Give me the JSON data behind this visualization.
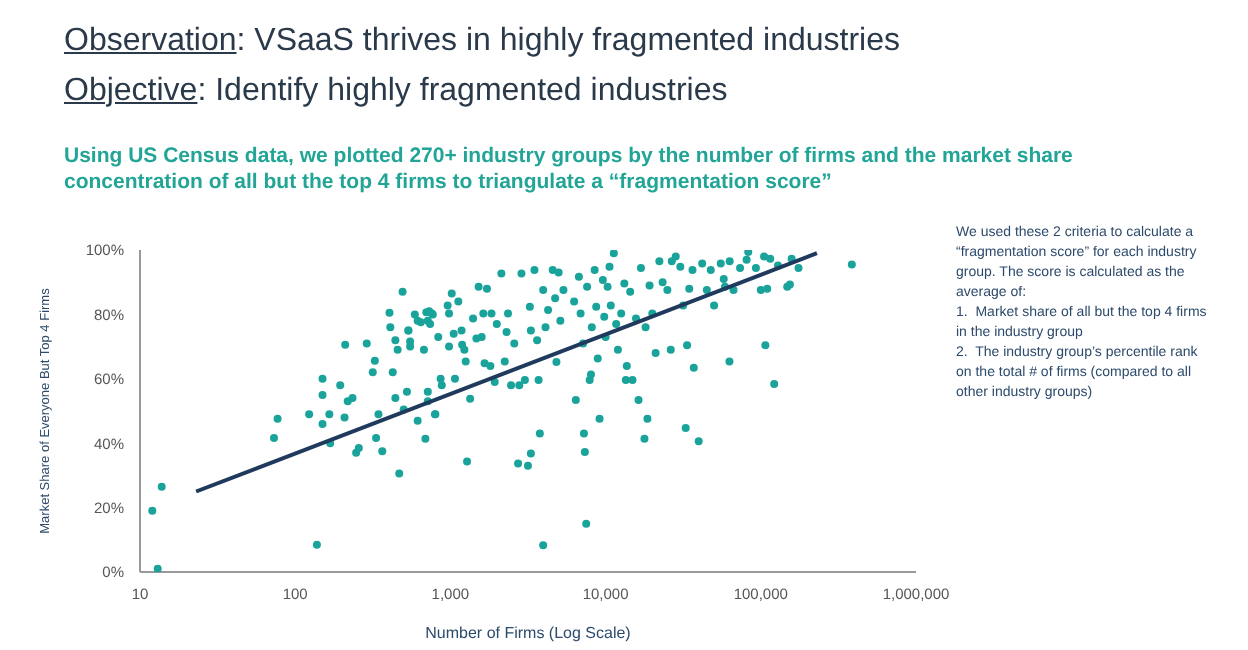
{
  "chart_data": {
    "type": "scatter",
    "title": "Observation: VSaaS thrives in highly fragmented industries",
    "subtitle": "Objective: Identify highly fragmented industries",
    "annotations": [
      "Using US Census data, we plotted 270+ industry groups by the number of firms and the market share concentration of all but the top 4 firms to triangulate a “fragmentation score”",
      "We used these 2 criteria to calculate a “fragmentation score” for each industry group. The score is calculated as the average of:\n1.  Market share of all but the top 4 firms in the industry group\n2.  The industry group’s percentile rank on the total # of firms (compared to all other industry groups)"
    ],
    "xlabel": "Number of Firms (Log Scale)",
    "ylabel": "Market Share of Everyone But Top 4 Firms",
    "log": "x",
    "grid": false,
    "legend": false,
    "marker": "circle",
    "xlim": [
      10,
      1000000
    ],
    "xticks": [
      10,
      100,
      {
        "value": 1000,
        "label": "1,000"
      },
      {
        "value": 10000,
        "label": "10,000"
      },
      {
        "value": 100000,
        "label": "100,000"
      },
      {
        "value": 1000000,
        "label": "1,000,000"
      }
    ],
    "ylim": [
      0,
      100
    ],
    "yticks": [
      {
        "value": 0,
        "label": "0%"
      },
      {
        "value": 20,
        "label": "20%"
      },
      {
        "value": 40,
        "label": "40%"
      },
      {
        "value": 60,
        "label": "60%"
      },
      {
        "value": 80,
        "label": "80%"
      },
      {
        "value": 100,
        "label": "100%"
      }
    ],
    "series": [
      {
        "type": "scatter",
        "color": "#1aa39a",
        "x": [
          12,
          13.8,
          13,
          73,
          77,
          123,
          138,
          150,
          150,
          150,
          166,
          168,
          195,
          208,
          210,
          218,
          234,
          247,
          257,
          289,
          316,
          326,
          344,
          332,
          364,
          405,
          410,
          425,
          442,
          442,
          457,
          468,
          492,
          500,
          525,
          535,
          550,
          550,
          590,
          615,
          645,
          675,
          690,
          715,
          715,
          730,
          770,
          800,
          537,
          615,
          700,
          715,
          740,
          760,
          795,
          835,
          865,
          880,
          960,
          980,
          980,
          1020,
          1050,
          1070,
          1125,
          1180,
          1190,
          1230,
          1255,
          1280,
          1340,
          1400,
          1470,
          1520,
          1590,
          1630,
          1660,
          1720,
          1810,
          1840,
          1930,
          1990,
          2130,
          2240,
          2300,
          2350,
          2460,
          2580,
          2730,
          2780,
          2870,
          3020,
          3160,
          3250,
          3300,
          3300,
          3480,
          3620,
          3700,
          3770,
          3960,
          3960,
          4100,
          4260,
          4560,
          4730,
          4820,
          4980,
          5110,
          5350,
          6270,
          6430,
          6730,
          6900,
          7160,
          7250,
          7350,
          7500,
          7600,
          7900,
          8050,
          8150,
          8500,
          8700,
          8900,
          9140,
          9600,
          9800,
          10000,
          10300,
          10600,
          10800,
          11300,
          11700,
          12000,
          12600,
          13200,
          13500,
          13700,
          14400,
          14900,
          15700,
          16300,
          16900,
          17800,
          18100,
          18600,
          19200,
          20000,
          21000,
          22200,
          23300,
          25000,
          26300,
          26700,
          28300,
          30300,
          31600,
          32800,
          33500,
          34600,
          36300,
          37000,
          39800,
          41900,
          44900,
          47600,
          50000,
          55200,
          57700,
          58800,
          62800,
          66700,
          73500,
          81000,
          63000,
          83000,
          93000,
          100000,
          105000,
          107000,
          110000,
          115000,
          122000,
          129000,
          148000,
          154000,
          158000,
          175000,
          386000
        ],
        "values": [
          19,
          26.5,
          1,
          41.6,
          47.6,
          49,
          8.5,
          60,
          55,
          46,
          49,
          40,
          58,
          48,
          70.6,
          53,
          54,
          37,
          38.5,
          71,
          62,
          65.6,
          49,
          41.6,
          37.5,
          80.5,
          76,
          62,
          72,
          54,
          69,
          30.6,
          87,
          50.5,
          56,
          75,
          71.6,
          70,
          80,
          47,
          77.6,
          69,
          41.4,
          56,
          78,
          81,
          80,
          49,
          75,
          78,
          80.7,
          53,
          77,
          80.3,
          49,
          73,
          60,
          58,
          82.8,
          80.3,
          70,
          86.5,
          74,
          60,
          84,
          75,
          70.6,
          69,
          65.4,
          34.3,
          53.8,
          78.7,
          72.5,
          88.6,
          73,
          80.3,
          64.8,
          88,
          64,
          80.3,
          59,
          77,
          92.7,
          65.4,
          74.5,
          80.3,
          58,
          71,
          33.7,
          58,
          92.7,
          59.6,
          33,
          82.4,
          36.8,
          75,
          93.8,
          72,
          59.6,
          43,
          8.3,
          87.6,
          76,
          81.4,
          93.8,
          85,
          65.2,
          93,
          78,
          87.6,
          84,
          53.4,
          91.7,
          80.3,
          71,
          43,
          37.3,
          15,
          88.6,
          59.6,
          61.3,
          76,
          93.8,
          82.4,
          66.3,
          47.6,
          90.7,
          79.3,
          73,
          88.6,
          94.8,
          82.8,
          99,
          77,
          69,
          80.3,
          89.6,
          59.6,
          64,
          87,
          59.6,
          78.7,
          53.4,
          94.4,
          41.4,
          76,
          47.6,
          89,
          80.3,
          68,
          96.5,
          90,
          87.6,
          69,
          96.5,
          98,
          94.8,
          82.8,
          44.7,
          70.4,
          88,
          93.8,
          63.4,
          40.6,
          95.8,
          87.6,
          93.8,
          82.8,
          95.8,
          91,
          88.6,
          65.4,
          87.6,
          94.4,
          97,
          96.5,
          99.4,
          94.4,
          87.6,
          98,
          70.4,
          88,
          97.3,
          58.4,
          95.2,
          88.6,
          89.3,
          97.3,
          94.4,
          95.5
        ]
      },
      {
        "type": "line",
        "color": "#1f3a5c",
        "marker": "none",
        "x": [
          23,
          230000
        ],
        "values": [
          25,
          99
        ]
      }
    ]
  }
}
